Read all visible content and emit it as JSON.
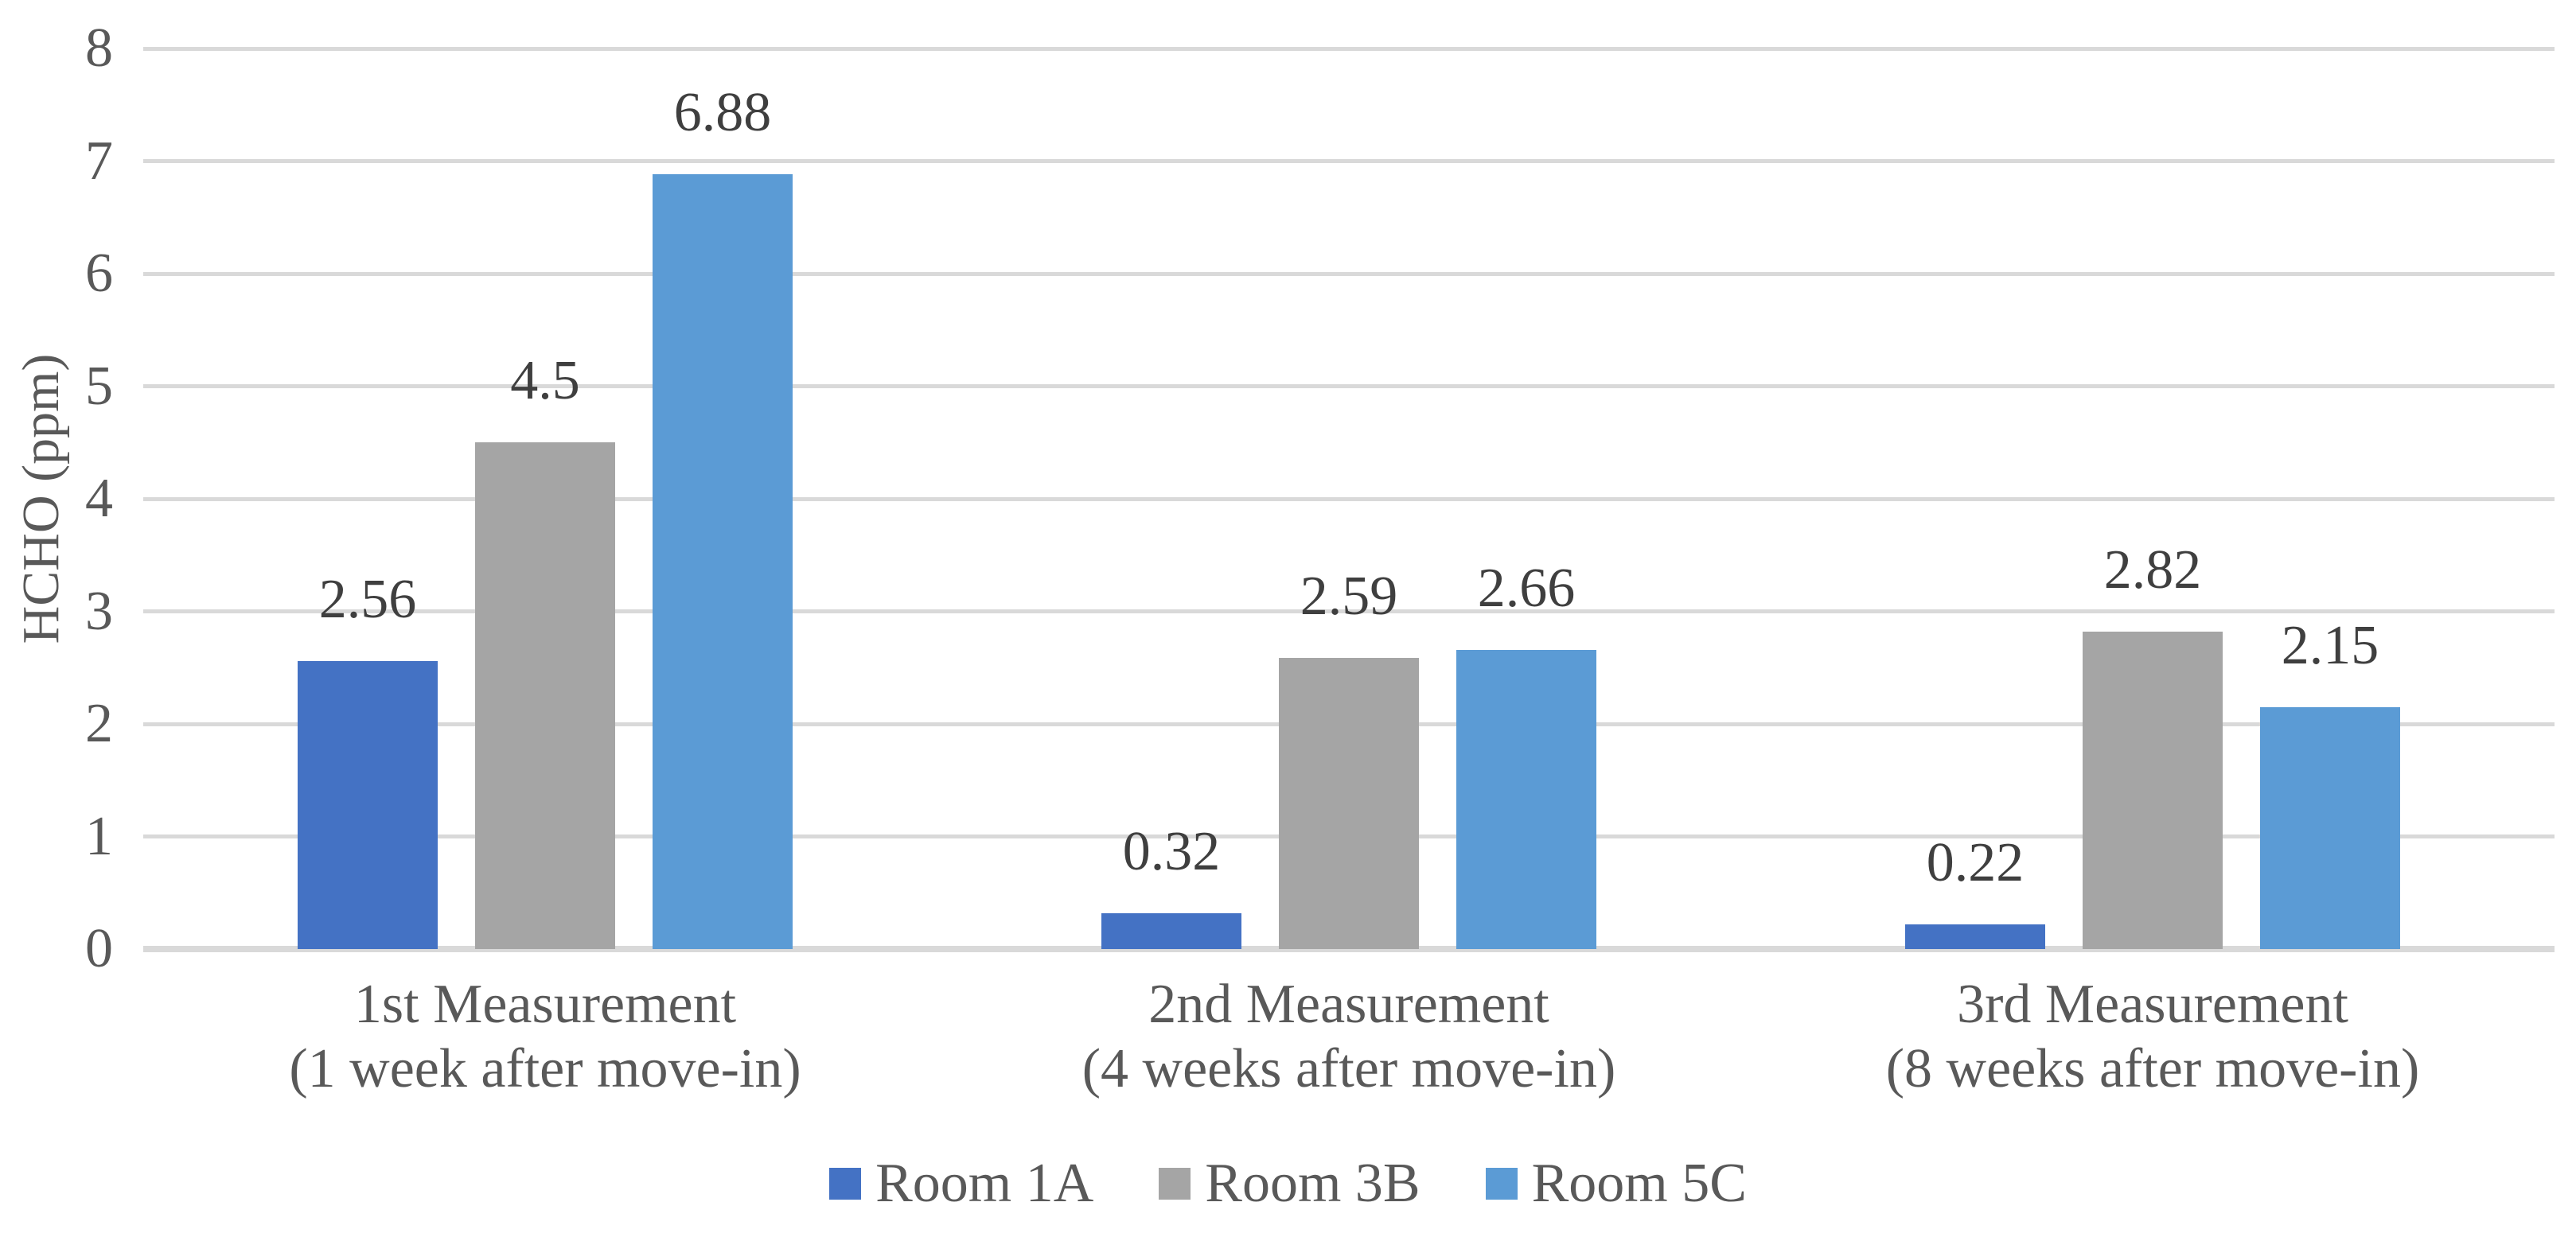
{
  "chart_data": {
    "type": "bar",
    "title": "",
    "xlabel": "",
    "ylabel": "HCHO (ppm)",
    "ylim": [
      0,
      8
    ],
    "ytick_step": 1,
    "ytick_labels": [
      "0",
      "1",
      "2",
      "3",
      "4",
      "5",
      "6",
      "7",
      "8"
    ],
    "grid": "horizontal-major",
    "legend_position": "bottom-center",
    "categories": [
      {
        "line1": "1st Measurement",
        "line2": "(1 week after move-in)"
      },
      {
        "line1": "2nd Measurement",
        "line2": "(4 weeks after move-in)"
      },
      {
        "line1": "3rd Measurement",
        "line2": "(8 weeks after move-in)"
      }
    ],
    "series": [
      {
        "name": "Room 1A",
        "color": "#4472C4",
        "values": [
          2.56,
          0.32,
          0.22
        ],
        "labels": [
          "2.56",
          "0.32",
          "0.22"
        ]
      },
      {
        "name": "Room 3B",
        "color": "#A5A5A5",
        "values": [
          4.5,
          2.59,
          2.82
        ],
        "labels": [
          "4.5",
          "2.59",
          "2.82"
        ]
      },
      {
        "name": "Room 5C",
        "color": "#5B9BD5",
        "values": [
          6.88,
          2.66,
          2.15
        ],
        "labels": [
          "6.88",
          "2.66",
          "2.15"
        ]
      }
    ]
  },
  "style_colors": {
    "background": "#FFFFFF",
    "gridline": "#D9D9D9",
    "axis_text": "#595959",
    "data_label_text": "#3F3F3F"
  }
}
